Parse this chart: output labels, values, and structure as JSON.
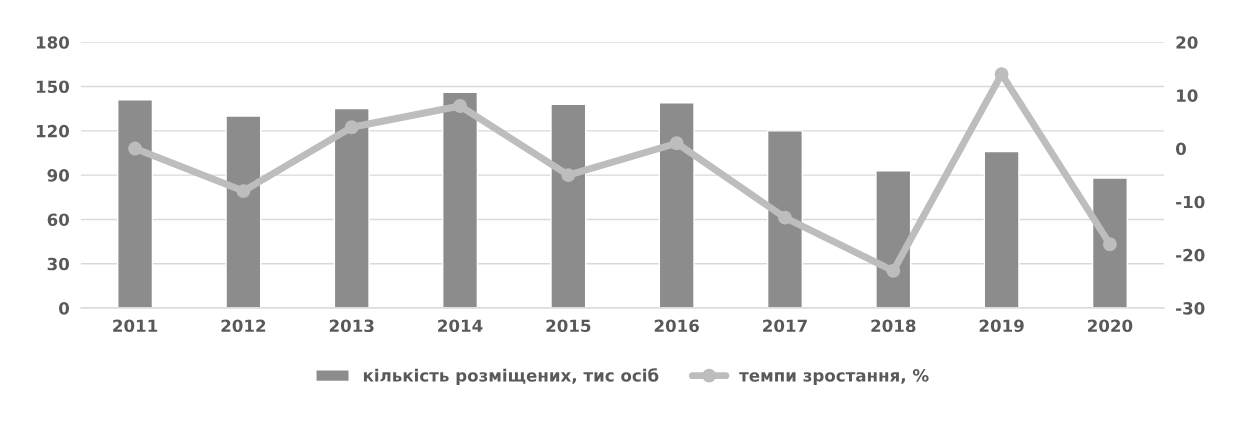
{
  "chart_data": {
    "type": "bar",
    "categories": [
      "2011",
      "2012",
      "2013",
      "2014",
      "2015",
      "2016",
      "2017",
      "2018",
      "2019",
      "2020"
    ],
    "series": [
      {
        "name": "кількість розміщених, тис осіб",
        "color": "#8c8c8c",
        "values": [
          141,
          130,
          135,
          146,
          138,
          139,
          120,
          93,
          106,
          88
        ]
      },
      {
        "name": "темпи зростання, %",
        "type": "line",
        "axis": "y2",
        "color": "#bdbdbd",
        "marker": "circle",
        "values": [
          0,
          -8,
          4,
          8,
          -5,
          1,
          -13,
          -23,
          14,
          -18
        ]
      }
    ],
    "ylim": [
      0,
      180
    ],
    "yticks": [
      0,
      30,
      60,
      90,
      120,
      150,
      180
    ],
    "y2lim": [
      -30,
      20
    ],
    "y2ticks": [
      -30,
      -20,
      -10,
      0,
      10,
      20
    ],
    "grid": "y",
    "legend": "bottom"
  }
}
